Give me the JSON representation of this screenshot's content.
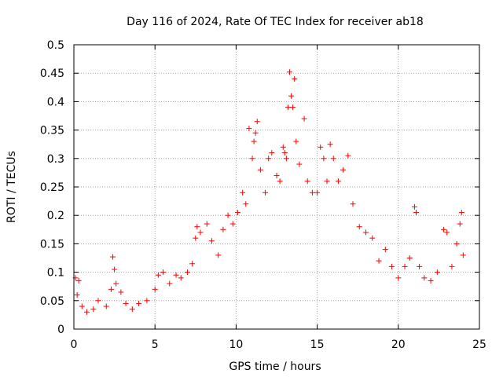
{
  "chart_data": {
    "type": "scatter",
    "title": "Day 116 of 2024, Rate Of TEC Index for receiver ab18",
    "xlabel": "GPS time / hours",
    "ylabel": "ROTI / TECUs",
    "xlim": [
      0,
      25
    ],
    "ylim": [
      0,
      0.5
    ],
    "x_ticks": [
      0,
      5,
      10,
      15,
      20,
      25
    ],
    "y_ticks": [
      0,
      0.05,
      0.1,
      0.15,
      0.2,
      0.25,
      0.3,
      0.35,
      0.4,
      0.45,
      0.5
    ],
    "x_tick_labels": [
      "0",
      "5",
      "10",
      "15",
      "20",
      "25"
    ],
    "y_tick_labels": [
      "0",
      "0.05",
      "0.1",
      "0.15",
      "0.2",
      "0.25",
      "0.3",
      "0.35",
      "0.4",
      "0.45",
      "0.5"
    ],
    "grid": true,
    "marker": "plus",
    "color": "#ff0000",
    "series": [
      {
        "points": [
          [
            0.1,
            0.09
          ],
          [
            0.3,
            0.085
          ],
          [
            0.2,
            0.06
          ],
          [
            0.5,
            0.04
          ],
          [
            0.8,
            0.03
          ],
          [
            1.2,
            0.035
          ],
          [
            1.5,
            0.05
          ],
          [
            2.0,
            0.04
          ],
          [
            2.3,
            0.07
          ],
          [
            2.4,
            0.127
          ],
          [
            2.5,
            0.105
          ],
          [
            2.6,
            0.08
          ],
          [
            2.9,
            0.065
          ],
          [
            3.2,
            0.045
          ],
          [
            3.6,
            0.035
          ],
          [
            4.0,
            0.045
          ],
          [
            4.5,
            0.05
          ],
          [
            5.0,
            0.07
          ],
          [
            5.2,
            0.095
          ],
          [
            5.5,
            0.1
          ],
          [
            5.9,
            0.08
          ],
          [
            6.3,
            0.095
          ],
          [
            6.6,
            0.09
          ],
          [
            7.0,
            0.1
          ],
          [
            7.3,
            0.115
          ],
          [
            7.5,
            0.16
          ],
          [
            7.6,
            0.18
          ],
          [
            7.8,
            0.17
          ],
          [
            8.2,
            0.185
          ],
          [
            8.5,
            0.155
          ],
          [
            8.9,
            0.13
          ],
          [
            9.2,
            0.175
          ],
          [
            9.5,
            0.2
          ],
          [
            9.8,
            0.185
          ],
          [
            10.1,
            0.205
          ],
          [
            10.4,
            0.24
          ],
          [
            10.6,
            0.22
          ],
          [
            10.8,
            0.353
          ],
          [
            11.0,
            0.3
          ],
          [
            11.1,
            0.33
          ],
          [
            11.2,
            0.345
          ],
          [
            11.3,
            0.365
          ],
          [
            11.5,
            0.28
          ],
          [
            11.8,
            0.24
          ],
          [
            12.0,
            0.3
          ],
          [
            12.2,
            0.31
          ],
          [
            12.5,
            0.27
          ],
          [
            12.7,
            0.26
          ],
          [
            12.9,
            0.32
          ],
          [
            13.0,
            0.31
          ],
          [
            13.1,
            0.3
          ],
          [
            13.2,
            0.39
          ],
          [
            13.3,
            0.452
          ],
          [
            13.4,
            0.41
          ],
          [
            13.5,
            0.39
          ],
          [
            13.6,
            0.44
          ],
          [
            13.7,
            0.33
          ],
          [
            13.9,
            0.29
          ],
          [
            14.2,
            0.37
          ],
          [
            14.4,
            0.26
          ],
          [
            14.7,
            0.24
          ],
          [
            15.0,
            0.24
          ],
          [
            15.2,
            0.32
          ],
          [
            15.4,
            0.3
          ],
          [
            15.6,
            0.26
          ],
          [
            15.8,
            0.325
          ],
          [
            16.0,
            0.3
          ],
          [
            16.3,
            0.26
          ],
          [
            16.6,
            0.28
          ],
          [
            16.9,
            0.305
          ],
          [
            17.2,
            0.22
          ],
          [
            17.6,
            0.18
          ],
          [
            18.0,
            0.17
          ],
          [
            18.4,
            0.16
          ],
          [
            18.8,
            0.12
          ],
          [
            19.2,
            0.14
          ],
          [
            19.6,
            0.11
          ],
          [
            20.0,
            0.09
          ],
          [
            20.4,
            0.11
          ],
          [
            20.7,
            0.125
          ],
          [
            21.0,
            0.215
          ],
          [
            21.1,
            0.205
          ],
          [
            21.3,
            0.11
          ],
          [
            21.6,
            0.09
          ],
          [
            22.0,
            0.085
          ],
          [
            22.4,
            0.1
          ],
          [
            22.8,
            0.175
          ],
          [
            23.0,
            0.17
          ],
          [
            23.3,
            0.11
          ],
          [
            23.6,
            0.15
          ],
          [
            23.8,
            0.185
          ],
          [
            23.9,
            0.205
          ],
          [
            24.0,
            0.13
          ]
        ]
      }
    ]
  }
}
